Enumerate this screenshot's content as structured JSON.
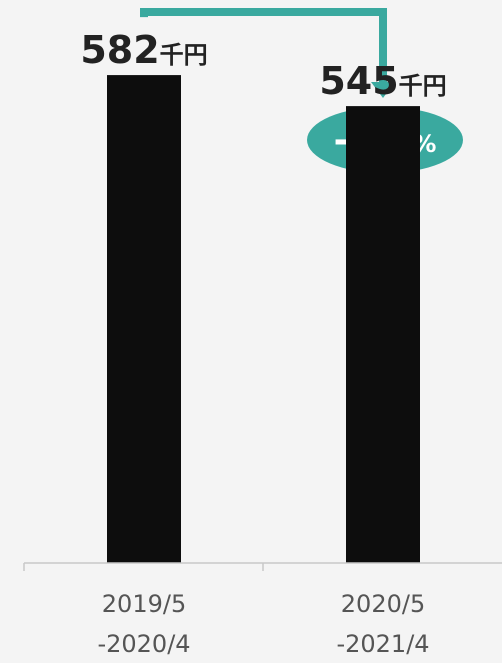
{
  "chart_data": {
    "type": "bar",
    "categories": [
      [
        "2019/5",
        "-2020/4"
      ],
      [
        "2020/5",
        "-2021/4"
      ]
    ],
    "values": [
      582,
      545
    ],
    "value_labels": [
      {
        "number": "582",
        "unit": "千円"
      },
      {
        "number": "545",
        "unit": "千円"
      }
    ],
    "change": {
      "number": "-6.4",
      "unit": "%"
    },
    "ylim": [
      0,
      600
    ],
    "grid": false,
    "bar_color": "#0d0d0d",
    "arrow_color": "#3aa99f",
    "badge_color": "#3aa99f",
    "badge_text_color": "#ffffff"
  }
}
